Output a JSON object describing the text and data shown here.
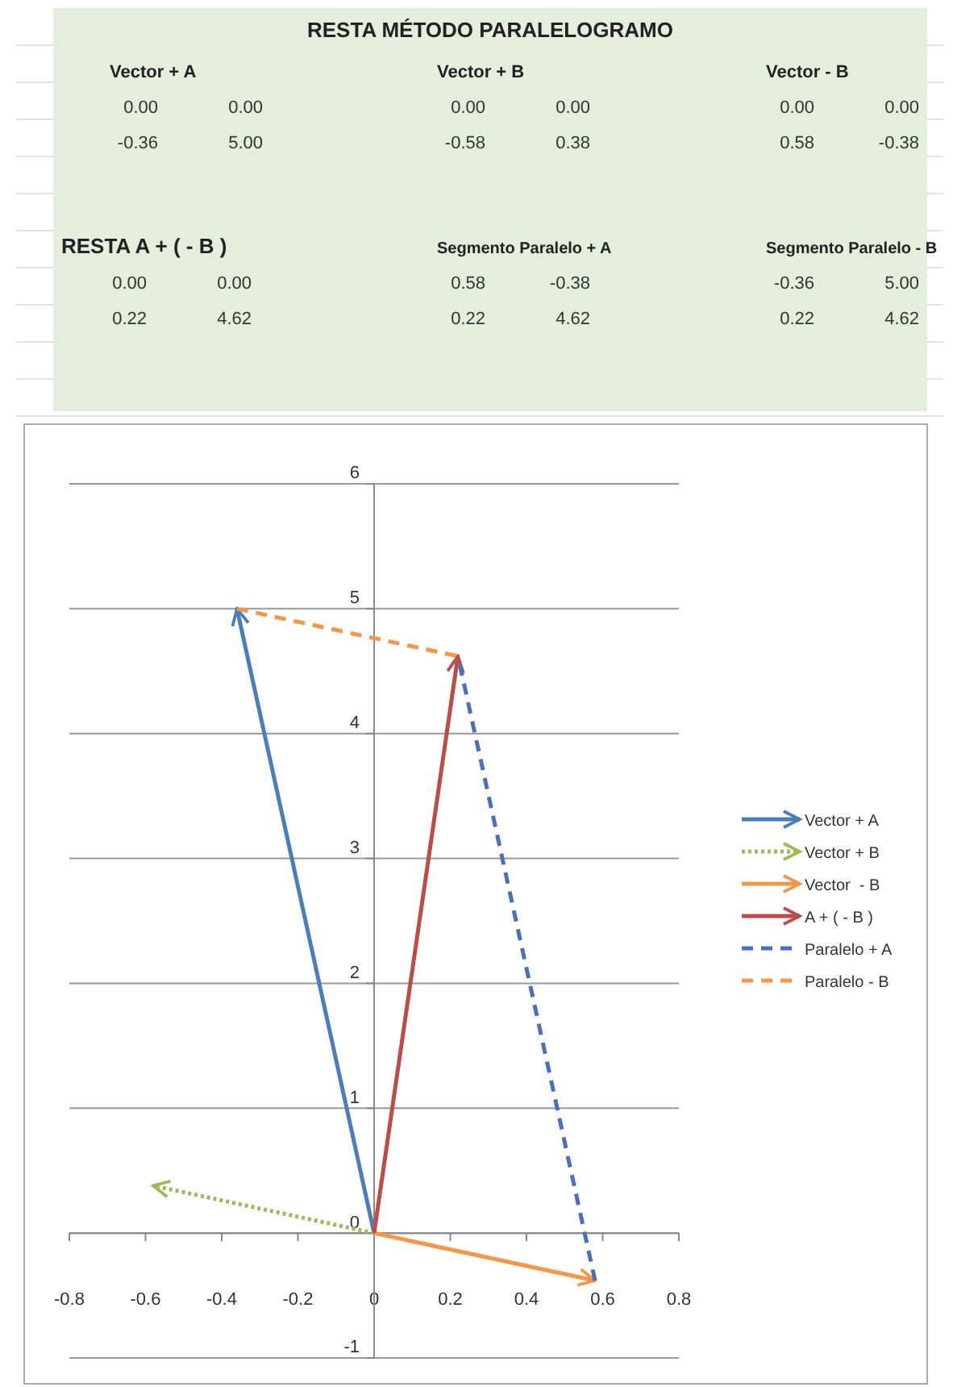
{
  "chart_data": {
    "type": "line",
    "title": "RESTA MÉTODO PARALELOGRAMO",
    "annotations": [
      "Vector + A",
      "0.00",
      "0.00",
      "-0.36",
      "5.00",
      "Vector + B",
      "0.00",
      "0.00",
      "-0.58",
      "0.38",
      "Vector - B",
      "0.00",
      "0.00",
      "0.58",
      "-0.38",
      "RESTA  A + ( - B )",
      "0.00",
      "0.00",
      "0.22",
      "4.62",
      "Segmento Paralelo + A",
      "0.58",
      "-0.38",
      "0.22",
      "4.62",
      "Segmento Paralelo - B",
      "-0.36",
      "5.00",
      "0.22",
      "4.62"
    ],
    "series": [
      {
        "name": "Vector + A",
        "color": "#4a7ebb",
        "x": [
          0,
          -0.36
        ],
        "values": [
          0,
          5
        ],
        "line_style": "solid"
      },
      {
        "name": "Vector + B",
        "color": "#9bbb59",
        "x": [
          0,
          -0.58
        ],
        "values": [
          0,
          0.38
        ],
        "line_style": "dotted"
      },
      {
        "name": "Vector  - B",
        "color": "#f79646",
        "x": [
          0,
          0.58
        ],
        "values": [
          0,
          -0.38
        ],
        "line_style": "solid"
      },
      {
        "name": "A + ( - B )",
        "color": "#be4b48",
        "x": [
          0,
          0.22
        ],
        "values": [
          0,
          4.62
        ],
        "line_style": "solid"
      },
      {
        "name": "Paralelo + A",
        "color": "#4a6fc0",
        "x": [
          0.58,
          0.22
        ],
        "values": [
          -0.38,
          4.62
        ],
        "line_style": "dashed"
      },
      {
        "name": "Paralelo - B",
        "color": "#f79646",
        "x": [
          -0.36,
          0.22
        ],
        "values": [
          5,
          4.62
        ],
        "line_style": "dashed"
      }
    ],
    "xlim": [
      -0.8,
      0.8
    ],
    "xticks": [
      -0.8,
      -0.6,
      -0.4,
      -0.2,
      0,
      0.2,
      0.4,
      0.6,
      0.8
    ],
    "ylim": [
      -1,
      6
    ],
    "yticks": [
      -1,
      0,
      1,
      2,
      3,
      4,
      5,
      6
    ],
    "grid": "y",
    "legend": "right",
    "marker": "none"
  }
}
